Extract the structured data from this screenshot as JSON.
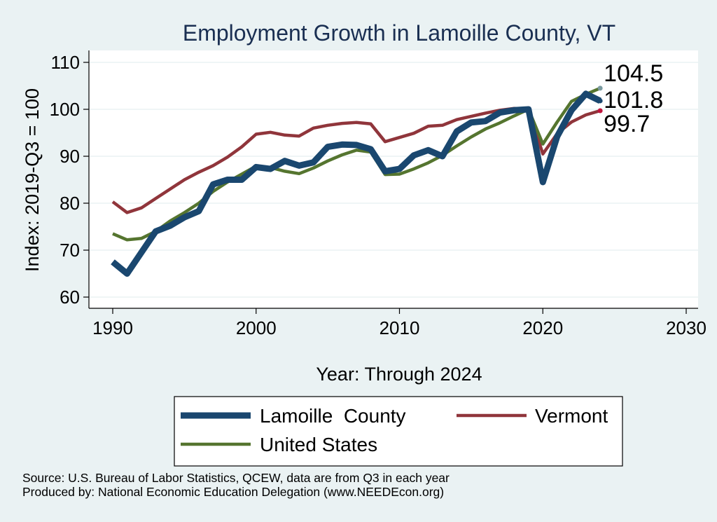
{
  "chart_data": {
    "type": "line",
    "title": "Employment Growth in Lamoille County, VT",
    "xlabel": "Year: Through 2024",
    "ylabel": "Index: 2019-Q3 = 100",
    "xlim": [
      1990,
      2030
    ],
    "ylim": [
      60,
      110
    ],
    "xticks": [
      1990,
      2000,
      2010,
      2020,
      2030
    ],
    "yticks": [
      60,
      70,
      80,
      90,
      100,
      110
    ],
    "grid": true,
    "legend_position": "bottom",
    "x": [
      1990,
      1991,
      1992,
      1993,
      1994,
      1995,
      1996,
      1997,
      1998,
      1999,
      2000,
      2001,
      2002,
      2003,
      2004,
      2005,
      2006,
      2007,
      2008,
      2009,
      2010,
      2011,
      2012,
      2013,
      2014,
      2015,
      2016,
      2017,
      2018,
      2019,
      2020,
      2021,
      2022,
      2023,
      2024
    ],
    "series": [
      {
        "name": "Lamoille  County",
        "color": "#1a476f",
        "values": [
          67.5,
          65.0,
          69.5,
          74.0,
          75.2,
          77.0,
          78.3,
          84.0,
          85.0,
          85.0,
          87.7,
          87.3,
          89.0,
          88.0,
          88.7,
          92.0,
          92.5,
          92.4,
          91.5,
          86.8,
          87.3,
          90.2,
          91.3,
          90.0,
          95.3,
          97.2,
          97.5,
          99.3,
          99.8,
          100.0,
          84.5,
          94.2,
          99.8,
          103.3,
          101.8
        ],
        "end_label": "101.8"
      },
      {
        "name": "Vermont",
        "color": "#90353b",
        "values": [
          80.3,
          78.0,
          79.0,
          81.0,
          83.0,
          85.0,
          86.6,
          88.0,
          89.8,
          92.0,
          94.7,
          95.1,
          94.5,
          94.3,
          96.0,
          96.6,
          97.0,
          97.2,
          96.9,
          93.1,
          94.0,
          94.9,
          96.4,
          96.6,
          97.8,
          98.5,
          99.2,
          99.8,
          100.2,
          100.0,
          90.5,
          94.8,
          97.3,
          98.8,
          99.7
        ],
        "end_label": "99.7"
      },
      {
        "name": "United States",
        "color": "#55752f",
        "values": [
          73.5,
          72.2,
          72.5,
          74.0,
          76.2,
          78.0,
          80.0,
          82.5,
          84.5,
          86.2,
          87.9,
          87.6,
          86.8,
          86.3,
          87.5,
          89.0,
          90.3,
          91.3,
          90.9,
          86.1,
          86.2,
          87.3,
          88.6,
          90.2,
          92.2,
          94.1,
          95.8,
          97.1,
          98.6,
          100.0,
          92.6,
          97.3,
          101.7,
          103.2,
          104.5
        ],
        "end_label": "104.5"
      }
    ],
    "source_lines": [
      "Source: U.S. Bureau of Labor Statistics, QCEW, data are from Q3 in each year",
      "Produced by: National Economic Education Delegation (www.NEEDEcon.org)"
    ]
  }
}
